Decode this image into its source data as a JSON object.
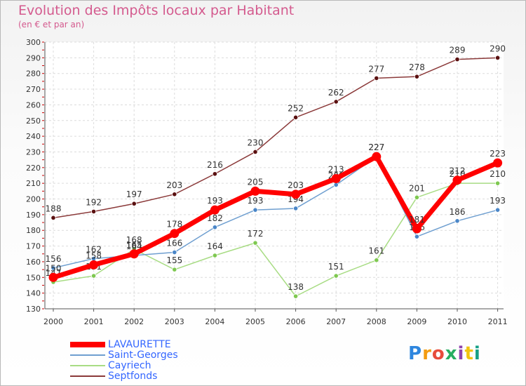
{
  "header": {
    "title": "Evolution des Impôts locaux par Habitant",
    "subtitle": "(en € et par an)"
  },
  "logo": {
    "text": "Proxiti",
    "colors": [
      "#2e86de",
      "#f39c12",
      "#e74c3c",
      "#27ae60",
      "#8e44ad",
      "#f1c40f",
      "#16a085"
    ]
  },
  "chart_data": {
    "type": "line",
    "title": "Evolution des Impôts locaux par Habitant",
    "subtitle": "(en € et par an)",
    "x": [
      "2000",
      "2001",
      "2002",
      "2003",
      "2004",
      "2005",
      "2006",
      "2007",
      "2008",
      "2009",
      "2010",
      "2011"
    ],
    "ylim": [
      130,
      300
    ],
    "yticks": [
      130,
      140,
      150,
      160,
      170,
      180,
      190,
      200,
      210,
      220,
      230,
      240,
      250,
      260,
      270,
      280,
      290,
      300
    ],
    "grid": true,
    "legend_position": "bottom-left",
    "series": [
      {
        "name": "Septfonds",
        "color": "#8b3a3a",
        "marker": "#5a1010",
        "width": 1.5,
        "values": [
          188,
          192,
          197,
          203,
          216,
          230,
          252,
          262,
          277,
          278,
          289,
          290
        ]
      },
      {
        "name": "Cayriech",
        "color": "#a8dc84",
        "marker": "#7ec850",
        "width": 1.5,
        "values": [
          147,
          151,
          168,
          155,
          164,
          172,
          138,
          151,
          161,
          201,
          210,
          210
        ]
      },
      {
        "name": "Saint-Georges",
        "color": "#6f9fd0",
        "marker": "#4a86c8",
        "width": 1.5,
        "values": [
          156,
          162,
          164,
          166,
          182,
          193,
          194,
          209,
          227,
          176,
          186,
          193
        ]
      },
      {
        "name": "LAVAURETTE",
        "color": "#ff0000",
        "marker": "#ff0000",
        "width": 7,
        "values": [
          150,
          158,
          165,
          178,
          193,
          205,
          203,
          213,
          227,
          181,
          212,
          223
        ]
      }
    ],
    "legend_order": [
      "LAVAURETTE",
      "Saint-Georges",
      "Cayriech",
      "Septfonds"
    ]
  }
}
